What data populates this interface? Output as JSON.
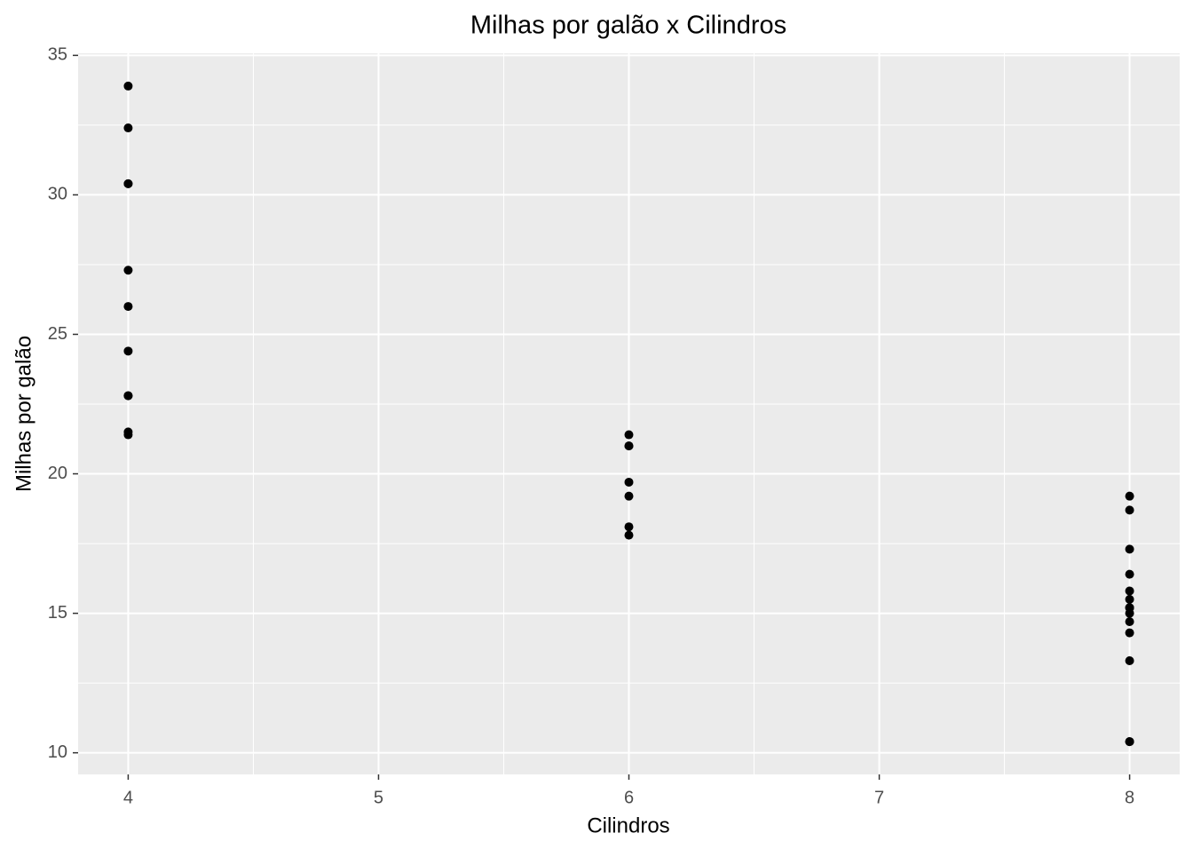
{
  "chart_data": {
    "type": "scatter",
    "title": "Milhas por galão x Cilindros",
    "x_label": "Cilindros",
    "y_label": "Milhas por galão",
    "color": "#000000",
    "grid": true,
    "background": "#ebebeb",
    "series": [
      {
        "x": [
          6,
          6,
          4,
          6,
          8,
          6,
          8,
          4,
          4,
          6,
          6,
          8,
          8,
          8,
          8,
          8,
          8,
          4,
          4,
          4,
          4,
          8,
          8,
          8,
          8,
          4,
          4,
          4,
          8,
          6,
          8,
          4
        ],
        "values": [
          21.0,
          21.0,
          22.8,
          21.4,
          18.7,
          18.1,
          14.3,
          24.4,
          22.8,
          19.2,
          17.8,
          16.4,
          17.3,
          15.2,
          10.4,
          10.4,
          14.7,
          32.4,
          30.4,
          33.9,
          21.5,
          15.5,
          15.2,
          13.3,
          19.2,
          27.3,
          26.0,
          30.4,
          15.8,
          19.7,
          15.0,
          21.4
        ]
      }
    ],
    "xlim": [
      3.8,
      8.2
    ],
    "xticks": [
      4,
      5,
      6,
      7,
      8
    ],
    "ylim": [
      9.225,
      35.075
    ],
    "yticks": [
      10,
      15,
      20,
      25,
      30,
      35
    ]
  }
}
